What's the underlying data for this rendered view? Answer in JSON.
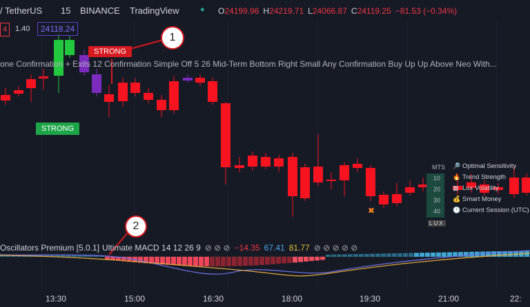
{
  "header": {
    "symbol": "/ TetherUS",
    "interval": "15",
    "exchange": "BINANCE",
    "source": "TradingView",
    "ohlc": [
      {
        "label": "O",
        "value": "24199.96"
      },
      {
        "label": "H",
        "value": "24219.71"
      },
      {
        "label": "L",
        "value": "24066.87"
      },
      {
        "label": "C",
        "value": "24119.25"
      }
    ],
    "change": "−81.53 (−0.34%)"
  },
  "indicator_row": {
    "box": "4",
    "value": "1.40",
    "price": "24118.24"
  },
  "annotations": {
    "strong_red": "STRONG",
    "strong_green": "STRONG",
    "marker_1": "1",
    "marker_2": "2"
  },
  "settings_text": "one Confirmation + Exits 12 Confirmation Simple Off 5 26 Mid-Term Bottom Right Small Any Confirmation Buy Up Up Above Neo With...",
  "panel": {
    "header": "MTS",
    "levels": [
      "10",
      "20",
      "30",
      "40"
    ],
    "footer": "LUX",
    "items": [
      "Optimal Sensitivity",
      "Trend Strength",
      "Lux Volatility",
      "Smart Money",
      "Current Session (UTC)"
    ]
  },
  "oscillator": {
    "name": "Oscillators Premium [5.0.1]",
    "macd": "Ultimate MACD 14 12 26 9",
    "icons_a": "⊘ ⊘ ⊘",
    "v1": "−14.35",
    "v2": "67.41",
    "v3": "81.77",
    "icons_b": "⊘ ⊘ ⊘ ⊘ ⊘"
  },
  "time_axis": [
    "13:30",
    "15:00",
    "16:30",
    "18:00",
    "19:30",
    "21:00",
    "22:"
  ]
}
